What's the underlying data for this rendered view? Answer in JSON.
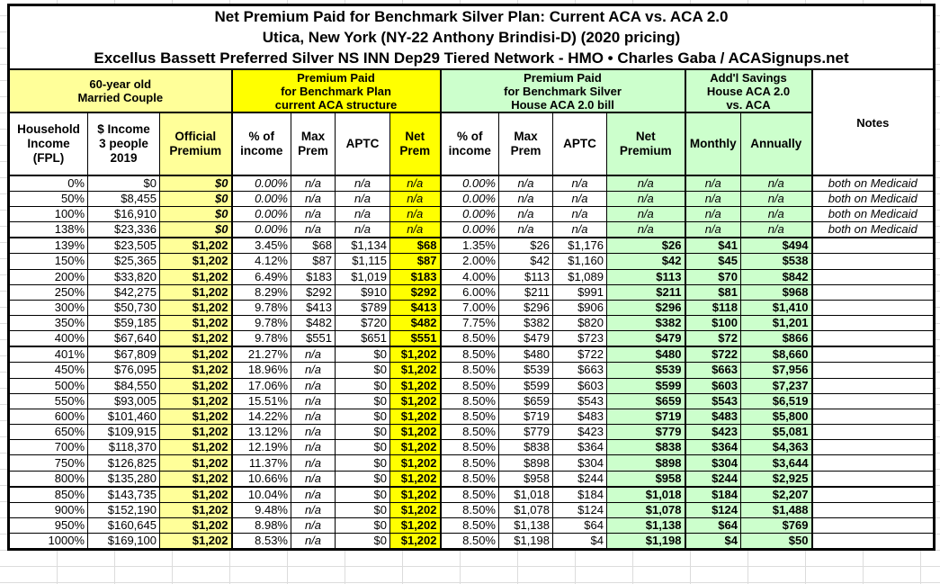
{
  "title": {
    "line1": "Net Premium Paid for Benchmark Silver Plan: Current ACA vs. ACA 2.0",
    "line2": "Utica, New York (NY-22 Anthony Brindisi-D) (2020 pricing)",
    "line3": "Excellus Bassett Preferred Silver NS INN Dep29 Tiered Network - HMO • Charles Gaba / ACASignups.net"
  },
  "colors": {
    "light_yellow": "#FFFF99",
    "bright_yellow": "#FFFF00",
    "light_green": "#CCFFCC",
    "border": "#000000",
    "text": "#000000"
  },
  "header": {
    "groups": [
      {
        "label": "60-year old\nMarried Couple"
      },
      {
        "label": "Premium Paid\nfor Benchmark Plan\ncurrent ACA structure"
      },
      {
        "label": "Premium Paid\nfor Benchmark Silver\nHouse ACA 2.0 bill"
      },
      {
        "label": "Add'l Savings\nHouse ACA 2.0\nvs. ACA"
      },
      {
        "label": "Notes"
      }
    ],
    "columns": [
      "Household\nIncome\n(FPL)",
      "$ Income\n3 people\n2019",
      "Official\nPremium",
      "% of\nincome",
      "Max\nPrem",
      "APTC",
      "Net\nPrem",
      "% of\nincome",
      "Max\nPrem",
      "APTC",
      "Net\nPremium",
      "Monthly",
      "Annually"
    ]
  },
  "chart_data": {
    "type": "table",
    "title": "Net Premium Paid for Benchmark Silver Plan: Current ACA vs. ACA 2.0",
    "subtitle": "Utica, New York (NY-22 Anthony Brindisi-D) (2020 pricing)",
    "plan": "Excellus Bassett Preferred Silver NS INN Dep29 Tiered Network - HMO",
    "source": "Charles Gaba / ACASignups.net",
    "columns_full": [
      "Household Income (FPL)",
      "$ Income 3 people 2019",
      "Official Premium",
      "Current ACA % of income",
      "Current ACA Max Prem",
      "Current ACA APTC",
      "Current ACA Net Prem",
      "House ACA 2.0 % of income",
      "House ACA 2.0 Max Prem",
      "House ACA 2.0 APTC",
      "House ACA 2.0 Net Premium",
      "Add'l Savings Monthly",
      "Add'l Savings Annually",
      "Notes"
    ],
    "rows": [
      [
        "0%",
        "$0",
        "$0",
        "0.00%",
        "n/a",
        "n/a",
        "n/a",
        "0.00%",
        "n/a",
        "n/a",
        "n/a",
        "n/a",
        "n/a",
        "both on Medicaid"
      ],
      [
        "50%",
        "$8,455",
        "$0",
        "0.00%",
        "n/a",
        "n/a",
        "n/a",
        "0.00%",
        "n/a",
        "n/a",
        "n/a",
        "n/a",
        "n/a",
        "both on Medicaid"
      ],
      [
        "100%",
        "$16,910",
        "$0",
        "0.00%",
        "n/a",
        "n/a",
        "n/a",
        "0.00%",
        "n/a",
        "n/a",
        "n/a",
        "n/a",
        "n/a",
        "both on Medicaid"
      ],
      [
        "138%",
        "$23,336",
        "$0",
        "0.00%",
        "n/a",
        "n/a",
        "n/a",
        "0.00%",
        "n/a",
        "n/a",
        "n/a",
        "n/a",
        "n/a",
        "both on Medicaid"
      ],
      [
        "139%",
        "$23,505",
        "$1,202",
        "3.45%",
        "$68",
        "$1,134",
        "$68",
        "1.35%",
        "$26",
        "$1,176",
        "$26",
        "$41",
        "$494",
        ""
      ],
      [
        "150%",
        "$25,365",
        "$1,202",
        "4.12%",
        "$87",
        "$1,115",
        "$87",
        "2.00%",
        "$42",
        "$1,160",
        "$42",
        "$45",
        "$538",
        ""
      ],
      [
        "200%",
        "$33,820",
        "$1,202",
        "6.49%",
        "$183",
        "$1,019",
        "$183",
        "4.00%",
        "$113",
        "$1,089",
        "$113",
        "$70",
        "$842",
        ""
      ],
      [
        "250%",
        "$42,275",
        "$1,202",
        "8.29%",
        "$292",
        "$910",
        "$292",
        "6.00%",
        "$211",
        "$991",
        "$211",
        "$81",
        "$968",
        ""
      ],
      [
        "300%",
        "$50,730",
        "$1,202",
        "9.78%",
        "$413",
        "$789",
        "$413",
        "7.00%",
        "$296",
        "$906",
        "$296",
        "$118",
        "$1,410",
        ""
      ],
      [
        "350%",
        "$59,185",
        "$1,202",
        "9.78%",
        "$482",
        "$720",
        "$482",
        "7.75%",
        "$382",
        "$820",
        "$382",
        "$100",
        "$1,201",
        ""
      ],
      [
        "400%",
        "$67,640",
        "$1,202",
        "9.78%",
        "$551",
        "$651",
        "$551",
        "8.50%",
        "$479",
        "$723",
        "$479",
        "$72",
        "$866",
        ""
      ],
      [
        "401%",
        "$67,809",
        "$1,202",
        "21.27%",
        "n/a",
        "$0",
        "$1,202",
        "8.50%",
        "$480",
        "$722",
        "$480",
        "$722",
        "$8,660",
        ""
      ],
      [
        "450%",
        "$76,095",
        "$1,202",
        "18.96%",
        "n/a",
        "$0",
        "$1,202",
        "8.50%",
        "$539",
        "$663",
        "$539",
        "$663",
        "$7,956",
        ""
      ],
      [
        "500%",
        "$84,550",
        "$1,202",
        "17.06%",
        "n/a",
        "$0",
        "$1,202",
        "8.50%",
        "$599",
        "$603",
        "$599",
        "$603",
        "$7,237",
        ""
      ],
      [
        "550%",
        "$93,005",
        "$1,202",
        "15.51%",
        "n/a",
        "$0",
        "$1,202",
        "8.50%",
        "$659",
        "$543",
        "$659",
        "$543",
        "$6,519",
        ""
      ],
      [
        "600%",
        "$101,460",
        "$1,202",
        "14.22%",
        "n/a",
        "$0",
        "$1,202",
        "8.50%",
        "$719",
        "$483",
        "$719",
        "$483",
        "$5,800",
        ""
      ],
      [
        "650%",
        "$109,915",
        "$1,202",
        "13.12%",
        "n/a",
        "$0",
        "$1,202",
        "8.50%",
        "$779",
        "$423",
        "$779",
        "$423",
        "$5,081",
        ""
      ],
      [
        "700%",
        "$118,370",
        "$1,202",
        "12.19%",
        "n/a",
        "$0",
        "$1,202",
        "8.50%",
        "$838",
        "$364",
        "$838",
        "$364",
        "$4,363",
        ""
      ],
      [
        "750%",
        "$126,825",
        "$1,202",
        "11.37%",
        "n/a",
        "$0",
        "$1,202",
        "8.50%",
        "$898",
        "$304",
        "$898",
        "$304",
        "$3,644",
        ""
      ],
      [
        "800%",
        "$135,280",
        "$1,202",
        "10.66%",
        "n/a",
        "$0",
        "$1,202",
        "8.50%",
        "$958",
        "$244",
        "$958",
        "$244",
        "$2,925",
        ""
      ],
      [
        "850%",
        "$143,735",
        "$1,202",
        "10.04%",
        "n/a",
        "$0",
        "$1,202",
        "8.50%",
        "$1,018",
        "$184",
        "$1,018",
        "$184",
        "$2,207",
        ""
      ],
      [
        "900%",
        "$152,190",
        "$1,202",
        "9.48%",
        "n/a",
        "$0",
        "$1,202",
        "8.50%",
        "$1,078",
        "$124",
        "$1,078",
        "$124",
        "$1,488",
        ""
      ],
      [
        "950%",
        "$160,645",
        "$1,202",
        "8.98%",
        "n/a",
        "$0",
        "$1,202",
        "8.50%",
        "$1,138",
        "$64",
        "$1,138",
        "$64",
        "$769",
        ""
      ],
      [
        "1000%",
        "$169,100",
        "$1,202",
        "8.53%",
        "n/a",
        "$0",
        "$1,202",
        "8.50%",
        "$1,198",
        "$4",
        "$1,198",
        "$4",
        "$50",
        ""
      ]
    ],
    "group_separators_after_row_index": [
      3,
      10,
      19
    ],
    "medicaid_row_indices": [
      0,
      1,
      2,
      3
    ]
  }
}
